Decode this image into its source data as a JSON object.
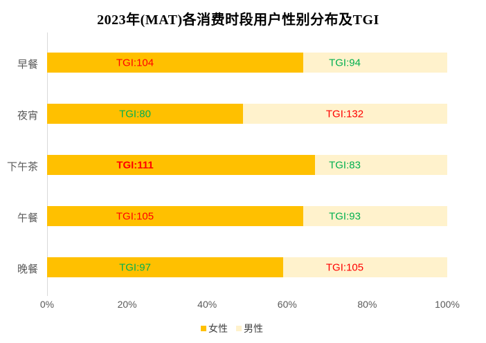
{
  "chart_data": {
    "type": "bar",
    "orientation": "horizontal-stacked",
    "title": "2023年(MAT)各消费时段用户性别分布及TGI",
    "categories": [
      "早餐",
      "夜宵",
      "下午茶",
      "午餐",
      "晚餐"
    ],
    "series": [
      {
        "name": "女性",
        "color": "#FFC000",
        "values": [
          64,
          49,
          67,
          64,
          59
        ]
      },
      {
        "name": "男性",
        "color": "#FFF2CC",
        "values": [
          36,
          51,
          33,
          36,
          41
        ]
      }
    ],
    "labels": {
      "female": [
        {
          "text": "TGI:104",
          "color": "#FF0000",
          "bold": false
        },
        {
          "text": "TGI:80",
          "color": "#00B050",
          "bold": false
        },
        {
          "text": "TGI:111",
          "color": "#FF0000",
          "bold": true
        },
        {
          "text": "TGI:105",
          "color": "#FF0000",
          "bold": false
        },
        {
          "text": "TGI:97",
          "color": "#00B050",
          "bold": false
        }
      ],
      "male": [
        {
          "text": "TGI:94",
          "color": "#00B050",
          "bold": false
        },
        {
          "text": "TGI:132",
          "color": "#FF0000",
          "bold": false
        },
        {
          "text": "TGI:83",
          "color": "#00B050",
          "bold": false
        },
        {
          "text": "TGI:93",
          "color": "#00B050",
          "bold": false
        },
        {
          "text": "TGI:105",
          "color": "#FF0000",
          "bold": false
        }
      ]
    },
    "x_ticks": [
      "0%",
      "20%",
      "40%",
      "60%",
      "80%",
      "100%"
    ],
    "xlim": [
      0,
      100
    ],
    "legend": [
      "女性",
      "男性"
    ],
    "grid": false,
    "legend_position": "bottom-center"
  }
}
